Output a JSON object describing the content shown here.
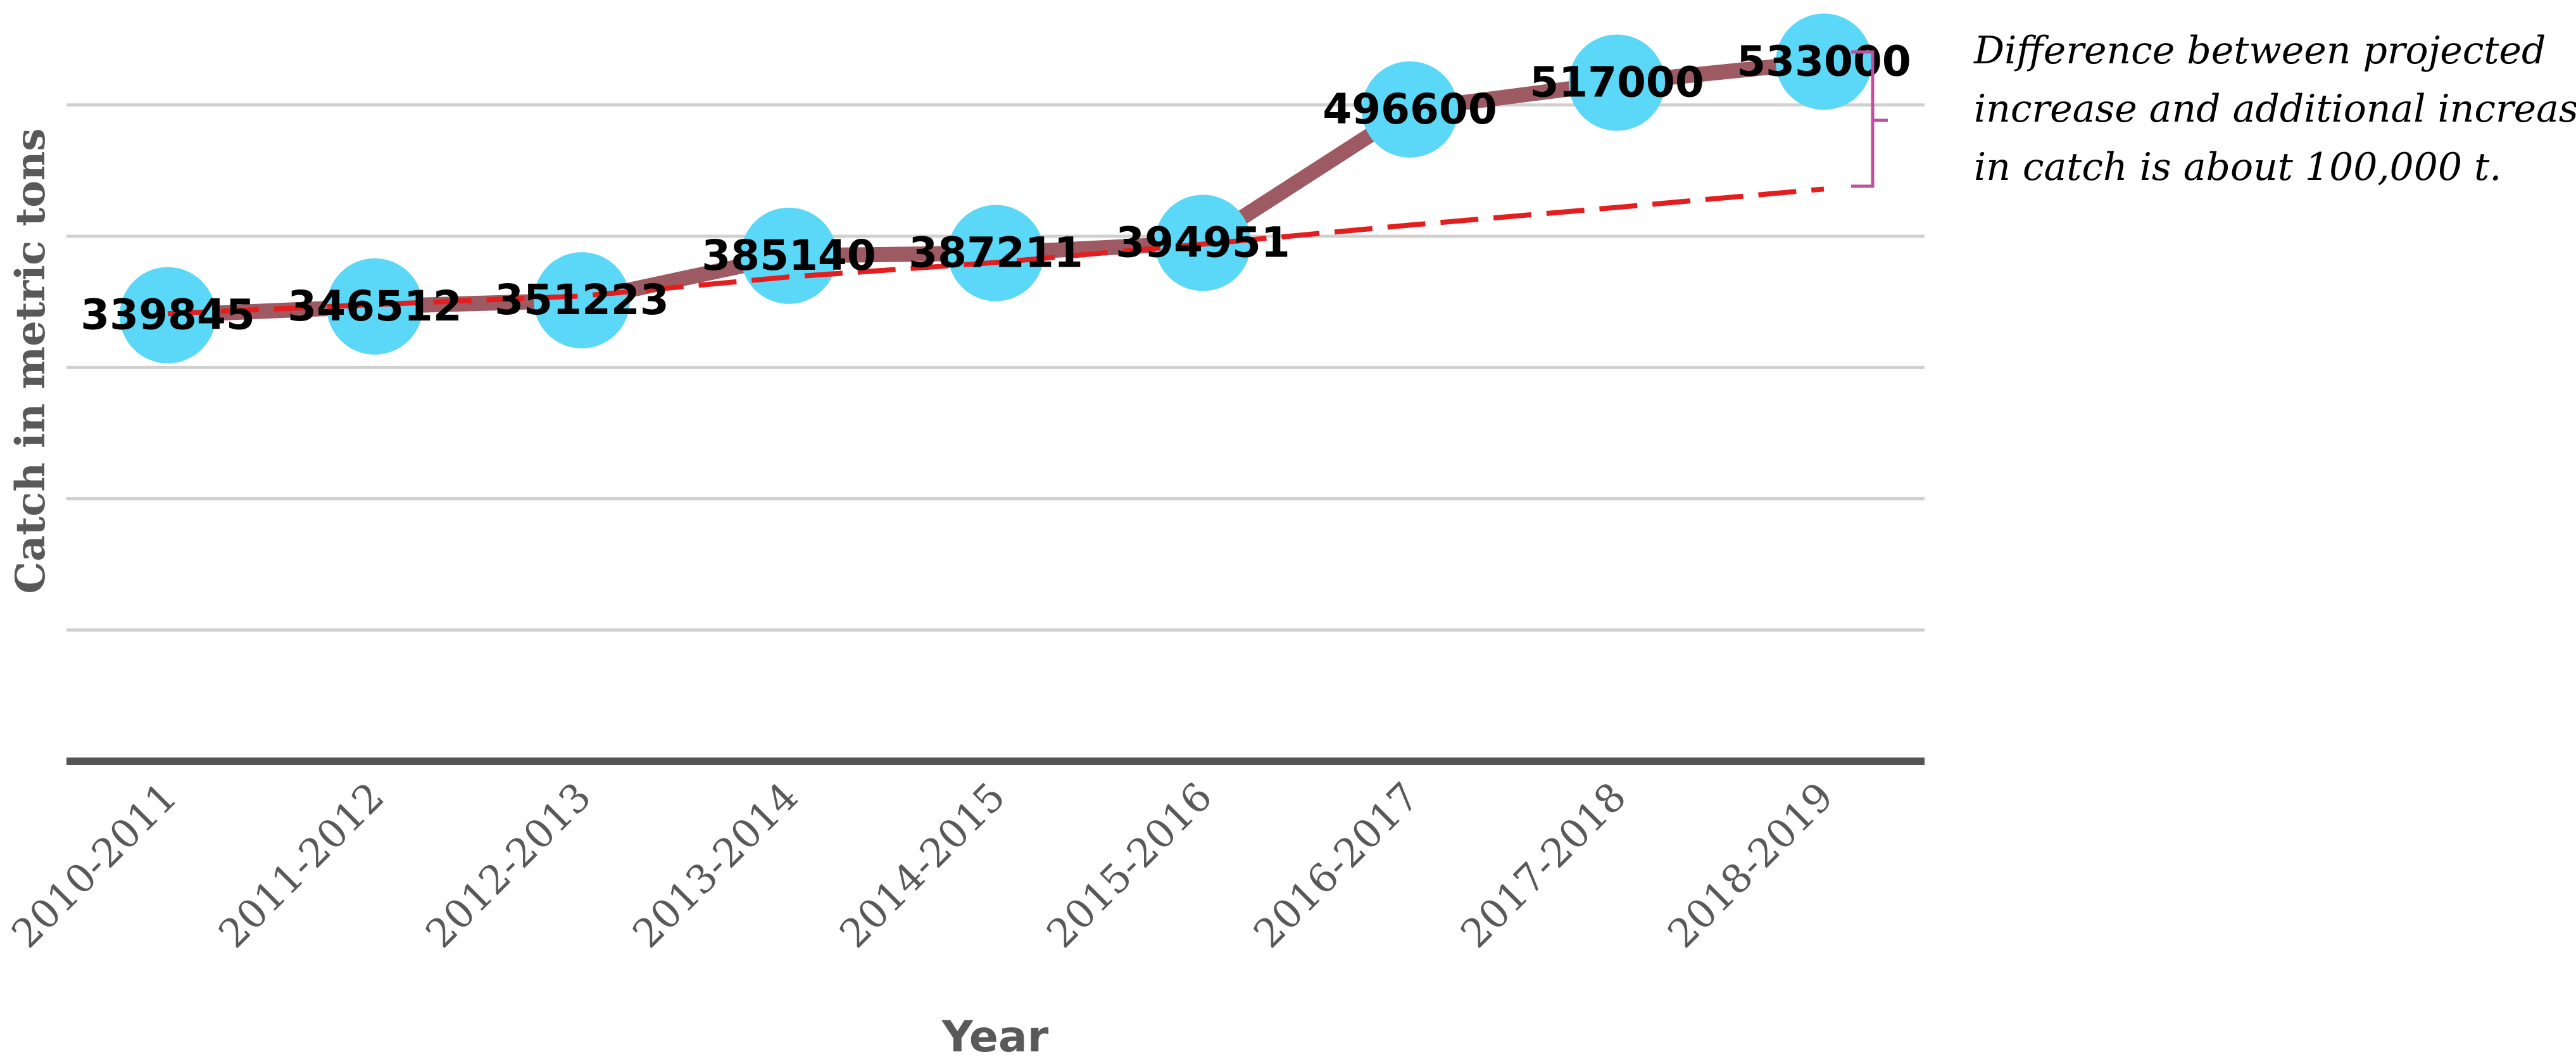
{
  "chart_data": {
    "type": "line",
    "title": "",
    "xlabel": "Year",
    "ylabel": "Catch in metric tons",
    "categories": [
      "2010-2011",
      "2011-2012",
      "2012-2013",
      "2013-2014",
      "2014-2015",
      "2015-2016",
      "2016-2017",
      "2017-2018",
      "2018-2019"
    ],
    "series": [
      {
        "values": [
          339845,
          346512,
          351223,
          385140,
          387211,
          394951,
          496600,
          517000,
          533000
        ],
        "data_labels": [
          "339845",
          "346512",
          "351223",
          "385140",
          "387211",
          "394951",
          "496600",
          "517000",
          "533000"
        ],
        "line_color": "#9e5a63",
        "marker_color": "#5bd7f8"
      }
    ],
    "trendline": {
      "style": "dashed",
      "color": "#e41e1e",
      "values": [
        341000,
        348000,
        354500,
        369000,
        380000,
        394000,
        408500,
        422000,
        436000
      ]
    },
    "ylim": [
      0,
      580000
    ],
    "grid": true,
    "annotation": {
      "lines": [
        "Difference between projected",
        "increase and additional increase",
        "in catch is about 100,000 t."
      ],
      "bracket_color": "#c0509b"
    }
  }
}
